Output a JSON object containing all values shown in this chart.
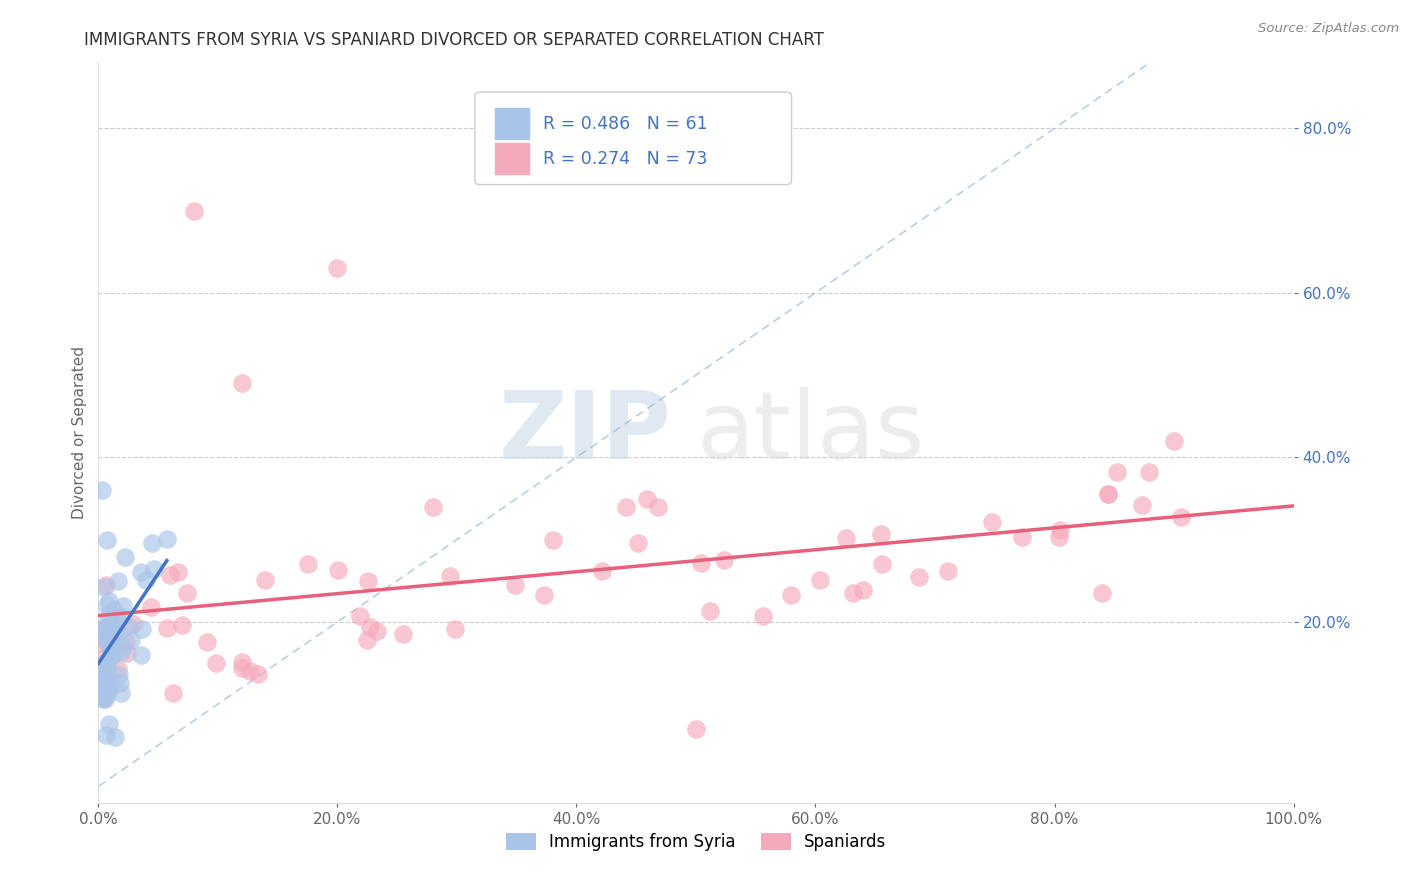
{
  "title": "IMMIGRANTS FROM SYRIA VS SPANIARD DIVORCED OR SEPARATED CORRELATION CHART",
  "source_text": "Source: ZipAtlas.com",
  "ylabel": "Divorced or Separated",
  "legend_label1": "Immigrants from Syria",
  "legend_label2": "Spaniards",
  "R1": 0.486,
  "N1": 61,
  "R2": 0.274,
  "N2": 73,
  "color1": "#A8C4E8",
  "color2": "#F5AABB",
  "line_color1": "#4472C4",
  "line_color2": "#E8607A",
  "diag_color": "#8AB0D8",
  "xlim": [
    0.0,
    1.0
  ],
  "ylim": [
    -0.02,
    0.88
  ],
  "xticks": [
    0.0,
    0.2,
    0.4,
    0.6,
    0.8,
    1.0
  ],
  "yticks": [
    0.2,
    0.4,
    0.6,
    0.8
  ],
  "watermark_zip": "ZIP",
  "watermark_atlas": "atlas",
  "background_color": "#FFFFFF",
  "grid_color": "#CCCCCC",
  "title_color": "#333333",
  "title_fontsize": 12,
  "axis_label_color": "#666666",
  "ytick_color": "#4472C4",
  "xtick_color": "#666666",
  "legend_R_color": "#4472C4",
  "legend_box_color": "#DDDDDD"
}
